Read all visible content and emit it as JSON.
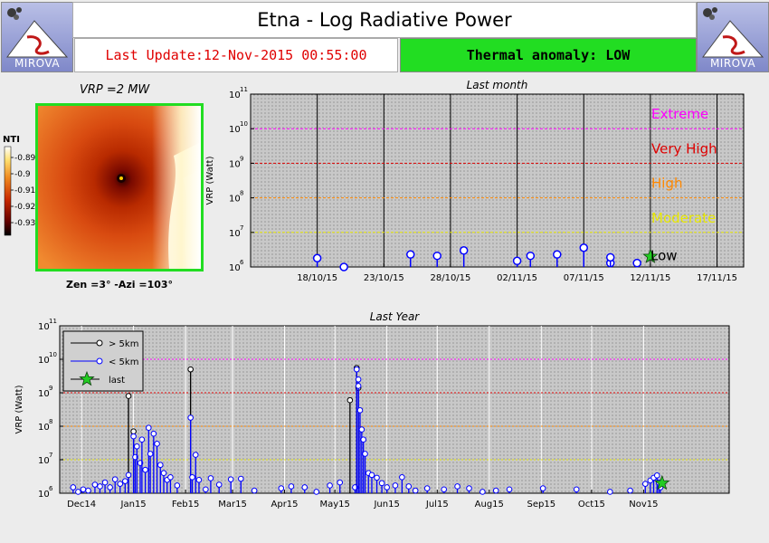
{
  "header": {
    "title": "Etna - Log Radiative Power",
    "last_update": "Last Update:12-Nov-2015 00:55:00",
    "anomaly": "Thermal anomaly:  LOW",
    "logo_text": "MIROVA"
  },
  "thermal_image": {
    "title": "VRP =2 MW",
    "caption": "Zen =3° -Azi =103°",
    "colorbar_label": "NTI",
    "colorbar_ticks": [
      "-0.89",
      "-0.9",
      "-0.91",
      "-0.92",
      "-0.93"
    ]
  },
  "colors": {
    "extreme": "#ff00ff",
    "very_high": "#dd0000",
    "high": "#ff8800",
    "moderate": "#e8e800",
    "near": "#0000ff",
    "far": "#000000",
    "last": "#22cc22",
    "anomaly_bg": "#22dd22"
  },
  "chart_data": [
    {
      "type": "scatter",
      "title": "Last month",
      "ylabel": "VRP (Watt)",
      "y_scale": "log",
      "ylim": [
        1000000,
        100000000000
      ],
      "xlim": [
        "2015-10-13",
        "2015-11-19"
      ],
      "x_tick_labels": [
        "18/10/15",
        "23/10/15",
        "28/10/15",
        "02/11/15",
        "07/11/15",
        "12/11/15",
        "17/11/15"
      ],
      "x_ticks": [
        "2015-10-18",
        "2015-10-23",
        "2015-10-28",
        "2015-11-02",
        "2015-11-07",
        "2015-11-12",
        "2015-11-17"
      ],
      "levels": [
        {
          "label": "Extreme",
          "value": 10000000000
        },
        {
          "label": "Very High",
          "value": 1000000000
        },
        {
          "label": "High",
          "value": 100000000
        },
        {
          "label": "Moderate",
          "value": 10000000
        }
      ],
      "current_level": "Low",
      "series": [
        {
          "name": "< 5km",
          "points": [
            [
              "2015-10-18",
              1800000
            ],
            [
              "2015-10-20",
              1000000
            ],
            [
              "2015-10-25",
              2300000
            ],
            [
              "2015-10-27",
              2100000
            ],
            [
              "2015-10-29",
              3000000
            ],
            [
              "2015-11-02",
              1500000
            ],
            [
              "2015-11-03",
              2100000
            ],
            [
              "2015-11-05",
              2300000
            ],
            [
              "2015-11-07",
              3600000
            ],
            [
              "2015-11-09",
              1300000
            ],
            [
              "2015-11-09",
              1900000
            ],
            [
              "2015-11-11",
              1300000
            ]
          ]
        },
        {
          "name": "last",
          "points": [
            [
              "2015-11-12",
              2000000
            ]
          ]
        }
      ]
    },
    {
      "type": "scatter",
      "title": "Last Year",
      "ylabel": "VRP (Watt)",
      "y_scale": "log",
      "ylim": [
        1000000,
        100000000000
      ],
      "xlim": [
        "2014-11-18",
        "2015-12-22"
      ],
      "x_tick_labels": [
        "Dec14",
        "Jan15",
        "Feb15",
        "Mar15",
        "Apr15",
        "May15",
        "Jun15",
        "Jul15",
        "Aug15",
        "Sep15",
        "Oct15",
        "Nov15"
      ],
      "x_ticks": [
        "2014-12-01",
        "2015-01-01",
        "2015-02-01",
        "2015-03-01",
        "2015-04-01",
        "2015-05-01",
        "2015-06-01",
        "2015-07-01",
        "2015-08-01",
        "2015-09-01",
        "2015-10-01",
        "2015-11-01"
      ],
      "levels": [
        {
          "label": "Extreme",
          "value": 10000000000
        },
        {
          "label": "Very High",
          "value": 1000000000
        },
        {
          "label": "High",
          "value": 100000000
        },
        {
          "label": "Moderate",
          "value": 10000000
        }
      ],
      "series": [
        {
          "name": "> 5km",
          "points": [
            [
              "2014-12-29",
              800000000
            ],
            [
              "2015-01-01",
              70000000
            ],
            [
              "2015-02-04",
              5000000000
            ],
            [
              "2015-05-10",
              600000000
            ],
            [
              "2015-05-14",
              5500000000
            ],
            [
              "2015-05-15",
              1400000000
            ]
          ]
        },
        {
          "name": "< 5km",
          "points": [
            [
              "2014-11-26",
              1500000
            ],
            [
              "2014-11-29",
              1100000
            ],
            [
              "2014-12-02",
              1300000
            ],
            [
              "2014-12-05",
              1200000
            ],
            [
              "2014-12-09",
              1800000
            ],
            [
              "2014-12-12",
              1600000
            ],
            [
              "2014-12-15",
              2100000
            ],
            [
              "2014-12-18",
              1500000
            ],
            [
              "2014-12-21",
              2600000
            ],
            [
              "2014-12-24",
              1900000
            ],
            [
              "2014-12-27",
              2300000
            ],
            [
              "2014-12-29",
              3500000
            ],
            [
              "2015-01-01",
              50000000
            ],
            [
              "2015-01-02",
              12000000
            ],
            [
              "2015-01-03",
              25000000
            ],
            [
              "2015-01-05",
              8000000
            ],
            [
              "2015-01-06",
              40000000
            ],
            [
              "2015-01-08",
              5000000
            ],
            [
              "2015-01-10",
              90000000
            ],
            [
              "2015-01-11",
              15000000
            ],
            [
              "2015-01-13",
              60000000
            ],
            [
              "2015-01-15",
              30000000
            ],
            [
              "2015-01-17",
              7000000
            ],
            [
              "2015-01-19",
              4000000
            ],
            [
              "2015-01-21",
              2500000
            ],
            [
              "2015-01-23",
              3000000
            ],
            [
              "2015-01-27",
              1700000
            ],
            [
              "2015-02-04",
              180000000
            ],
            [
              "2015-02-05",
              3000000
            ],
            [
              "2015-02-07",
              14000000
            ],
            [
              "2015-02-09",
              2500000
            ],
            [
              "2015-02-13",
              1300000
            ],
            [
              "2015-02-16",
              2800000
            ],
            [
              "2015-02-21",
              1800000
            ],
            [
              "2015-02-28",
              2600000
            ],
            [
              "2015-03-06",
              2700000
            ],
            [
              "2015-03-14",
              1200000
            ],
            [
              "2015-03-30",
              1400000
            ],
            [
              "2015-04-05",
              1600000
            ],
            [
              "2015-04-13",
              1500000
            ],
            [
              "2015-04-20",
              1100000
            ],
            [
              "2015-04-28",
              1700000
            ],
            [
              "2015-05-04",
              2100000
            ],
            [
              "2015-05-13",
              1500000
            ],
            [
              "2015-05-14",
              5000000000
            ],
            [
              "2015-05-15",
              2500000000
            ],
            [
              "2015-05-15",
              1600000000
            ],
            [
              "2015-05-16",
              300000000
            ],
            [
              "2015-05-17",
              80000000
            ],
            [
              "2015-05-18",
              40000000
            ],
            [
              "2015-05-19",
              15000000
            ],
            [
              "2015-05-21",
              4000000
            ],
            [
              "2015-05-23",
              3500000
            ],
            [
              "2015-05-26",
              2900000
            ],
            [
              "2015-05-29",
              2000000
            ],
            [
              "2015-06-01",
              1500000
            ],
            [
              "2015-06-06",
              1700000
            ],
            [
              "2015-06-10",
              3000000
            ],
            [
              "2015-06-14",
              1600000
            ],
            [
              "2015-06-18",
              1200000
            ],
            [
              "2015-06-25",
              1400000
            ],
            [
              "2015-07-05",
              1300000
            ],
            [
              "2015-07-13",
              1600000
            ],
            [
              "2015-07-20",
              1400000
            ],
            [
              "2015-07-28",
              1100000
            ],
            [
              "2015-08-05",
              1200000
            ],
            [
              "2015-08-13",
              1300000
            ],
            [
              "2015-09-02",
              1400000
            ],
            [
              "2015-09-22",
              1300000
            ],
            [
              "2015-10-12",
              1100000
            ],
            [
              "2015-10-24",
              1200000
            ],
            [
              "2015-11-02",
              1900000
            ],
            [
              "2015-11-05",
              2400000
            ],
            [
              "2015-11-07",
              2900000
            ],
            [
              "2015-11-09",
              3400000
            ],
            [
              "2015-11-10",
              2100000
            ],
            [
              "2015-11-11",
              1500000
            ]
          ]
        },
        {
          "name": "last",
          "points": [
            [
              "2015-11-12",
              2000000
            ]
          ]
        }
      ],
      "legend": {
        "position": "top-left",
        "entries": [
          "> 5km",
          "< 5km",
          "last"
        ]
      }
    }
  ]
}
